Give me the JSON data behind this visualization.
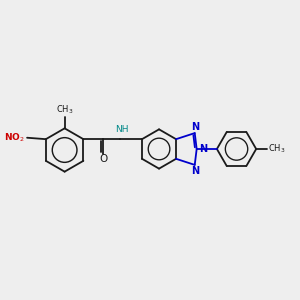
{
  "bg_color": "#eeeeee",
  "bond_color": "#1a1a1a",
  "nitrogen_color": "#0000cc",
  "oxygen_color": "#cc0000",
  "nh_color": "#008888",
  "lw": 1.3,
  "fs": 7.0,
  "dbo": 0.05,
  "xlim": [
    0,
    10
  ],
  "ylim": [
    2,
    8
  ]
}
